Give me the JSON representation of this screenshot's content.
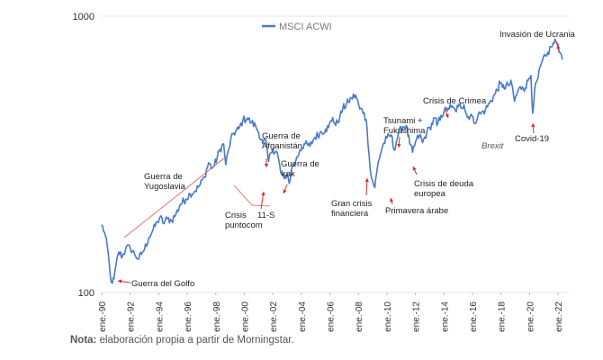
{
  "chart_data": {
    "type": "line",
    "ylog": true,
    "ylim": [
      100,
      1000
    ],
    "y_ticks": [
      "100",
      "1000"
    ],
    "xlim": [
      1990.0,
      2022.5
    ],
    "x_ticks": [
      "ene.-90",
      "ene.-92",
      "ene.-94",
      "ene.-96",
      "ene.-98",
      "ene.-00",
      "ene.-02",
      "ene.-04",
      "ene.-06",
      "ene.-08",
      "ene.-10",
      "ene.-12",
      "ene.-14",
      "ene.-16",
      "ene.-18",
      "ene.-20",
      "ene.-22"
    ],
    "x_tick_years": [
      1990,
      1992,
      1994,
      1996,
      1998,
      2000,
      2002,
      2004,
      2006,
      2008,
      2010,
      2012,
      2014,
      2016,
      2018,
      2020,
      2022
    ],
    "grid": true,
    "legend_position": "top-center",
    "series": [
      {
        "name": "MSCI ACWI",
        "color": "#4a7ac8",
        "points": [
          [
            1990.0,
            175
          ],
          [
            1990.2,
            165
          ],
          [
            1990.45,
            140
          ],
          [
            1990.6,
            115
          ],
          [
            1990.75,
            108
          ],
          [
            1990.85,
            112
          ],
          [
            1991.0,
            125
          ],
          [
            1991.2,
            140
          ],
          [
            1991.45,
            135
          ],
          [
            1991.7,
            145
          ],
          [
            1992.0,
            145
          ],
          [
            1992.3,
            138
          ],
          [
            1992.6,
            132
          ],
          [
            1992.85,
            140
          ],
          [
            1993.0,
            143
          ],
          [
            1993.3,
            158
          ],
          [
            1993.6,
            168
          ],
          [
            1993.9,
            180
          ],
          [
            1994.1,
            188
          ],
          [
            1994.3,
            178
          ],
          [
            1994.6,
            185
          ],
          [
            1994.9,
            182
          ],
          [
            1995.2,
            192
          ],
          [
            1995.5,
            208
          ],
          [
            1995.9,
            218
          ],
          [
            1996.2,
            228
          ],
          [
            1996.5,
            232
          ],
          [
            1996.9,
            245
          ],
          [
            1997.2,
            262
          ],
          [
            1997.5,
            295
          ],
          [
            1997.75,
            282
          ],
          [
            1997.9,
            288
          ],
          [
            1998.3,
            330
          ],
          [
            1998.55,
            345
          ],
          [
            1998.7,
            290
          ],
          [
            1998.9,
            330
          ],
          [
            1999.2,
            375
          ],
          [
            1999.6,
            390
          ],
          [
            1999.9,
            420
          ],
          [
            2000.2,
            428
          ],
          [
            2000.5,
            412
          ],
          [
            2000.8,
            400
          ],
          [
            2001.0,
            380
          ],
          [
            2001.3,
            345
          ],
          [
            2001.5,
            355
          ],
          [
            2001.7,
            298
          ],
          [
            2001.85,
            320
          ],
          [
            2002.0,
            330
          ],
          [
            2002.3,
            322
          ],
          [
            2002.55,
            272
          ],
          [
            2002.8,
            258
          ],
          [
            2003.0,
            270
          ],
          [
            2003.15,
            248
          ],
          [
            2003.3,
            278
          ],
          [
            2003.6,
            298
          ],
          [
            2003.9,
            328
          ],
          [
            2004.2,
            345
          ],
          [
            2004.6,
            338
          ],
          [
            2004.9,
            362
          ],
          [
            2005.3,
            378
          ],
          [
            2005.7,
            390
          ],
          [
            2005.9,
            395
          ],
          [
            2006.2,
            430
          ],
          [
            2006.4,
            402
          ],
          [
            2006.7,
            432
          ],
          [
            2006.9,
            462
          ],
          [
            2007.3,
            490
          ],
          [
            2007.5,
            505
          ],
          [
            2007.8,
            518
          ],
          [
            2008.1,
            462
          ],
          [
            2008.4,
            448
          ],
          [
            2008.6,
            400
          ],
          [
            2008.75,
            315
          ],
          [
            2008.9,
            262
          ],
          [
            2009.15,
            240
          ],
          [
            2009.4,
            298
          ],
          [
            2009.7,
            340
          ],
          [
            2010.0,
            362
          ],
          [
            2010.3,
            372
          ],
          [
            2010.5,
            328
          ],
          [
            2010.8,
            375
          ],
          [
            2011.1,
            398
          ],
          [
            2011.35,
            402
          ],
          [
            2011.6,
            345
          ],
          [
            2011.8,
            322
          ],
          [
            2012.0,
            350
          ],
          [
            2012.3,
            372
          ],
          [
            2012.5,
            348
          ],
          [
            2012.8,
            380
          ],
          [
            2013.0,
            395
          ],
          [
            2013.4,
            428
          ],
          [
            2013.5,
            402
          ],
          [
            2013.8,
            438
          ],
          [
            2014.0,
            450
          ],
          [
            2014.3,
            465
          ],
          [
            2014.5,
            468
          ],
          [
            2014.8,
            455
          ],
          [
            2015.0,
            470
          ],
          [
            2015.4,
            478
          ],
          [
            2015.65,
            430
          ],
          [
            2015.9,
            442
          ],
          [
            2016.1,
            410
          ],
          [
            2016.4,
            440
          ],
          [
            2016.6,
            445
          ],
          [
            2016.9,
            458
          ],
          [
            2017.2,
            485
          ],
          [
            2017.6,
            525
          ],
          [
            2017.95,
            572
          ],
          [
            2018.1,
            552
          ],
          [
            2018.5,
            562
          ],
          [
            2018.75,
            570
          ],
          [
            2018.95,
            492
          ],
          [
            2019.2,
            540
          ],
          [
            2019.5,
            555
          ],
          [
            2019.7,
            550
          ],
          [
            2019.95,
            595
          ],
          [
            2020.1,
            610
          ],
          [
            2020.22,
            445
          ],
          [
            2020.35,
            535
          ],
          [
            2020.6,
            600
          ],
          [
            2020.9,
            690
          ],
          [
            2021.2,
            718
          ],
          [
            2021.5,
            775
          ],
          [
            2021.85,
            810
          ],
          [
            2022.0,
            790
          ],
          [
            2022.15,
            738
          ],
          [
            2022.3,
            700
          ]
        ]
      }
    ],
    "annotations": [
      {
        "id": "golfo",
        "text": "Guerra del Golfo",
        "lines": [
          "Guerra del Golfo"
        ]
      },
      {
        "id": "yugoslavia",
        "text": "Guerra de Yugoslavia",
        "lines": [
          "Guerra de",
          "Yugoslavia"
        ]
      },
      {
        "id": "puntocom",
        "text": "Crisis puntocom",
        "lines": [
          "Crisis",
          "puntocom"
        ]
      },
      {
        "id": "afganistan",
        "text": "Guerra de Afganistán",
        "lines": [
          "Guerra de",
          "Afganistán"
        ]
      },
      {
        "id": "once_s",
        "text": "11-S",
        "lines": [
          "11-S"
        ]
      },
      {
        "id": "irak",
        "text": "Guerra de Irak",
        "lines": [
          "Guerra de",
          "Irak"
        ]
      },
      {
        "id": "gran_crisis",
        "text": "Gran crisis financiera",
        "lines": [
          "Gran crisis",
          "financiera"
        ]
      },
      {
        "id": "fukushima",
        "text": "Tsunami + Fukushima",
        "lines": [
          "Tsunami +",
          "Fukushima"
        ]
      },
      {
        "id": "primavera",
        "text": "Primavera árabe",
        "lines": [
          "Primavera árabe"
        ]
      },
      {
        "id": "deuda",
        "text": "Crisis de deuda europea",
        "lines": [
          "Crisis de deuda",
          "europea"
        ]
      },
      {
        "id": "crimea",
        "text": "Crisis de Crimea",
        "lines": [
          "Crisis de Crimea"
        ]
      },
      {
        "id": "brexit",
        "text": "Brexit",
        "lines": [
          "Brexit"
        ]
      },
      {
        "id": "covid",
        "text": "Covid-19",
        "lines": [
          "Covid-19"
        ]
      },
      {
        "id": "ucrania",
        "text": "Invasión de Ucrania",
        "lines": [
          "Invasión de Ucrania"
        ]
      }
    ]
  },
  "note": {
    "label": "Nota:",
    "text": " elaboración propia a partir de Morningstar."
  }
}
